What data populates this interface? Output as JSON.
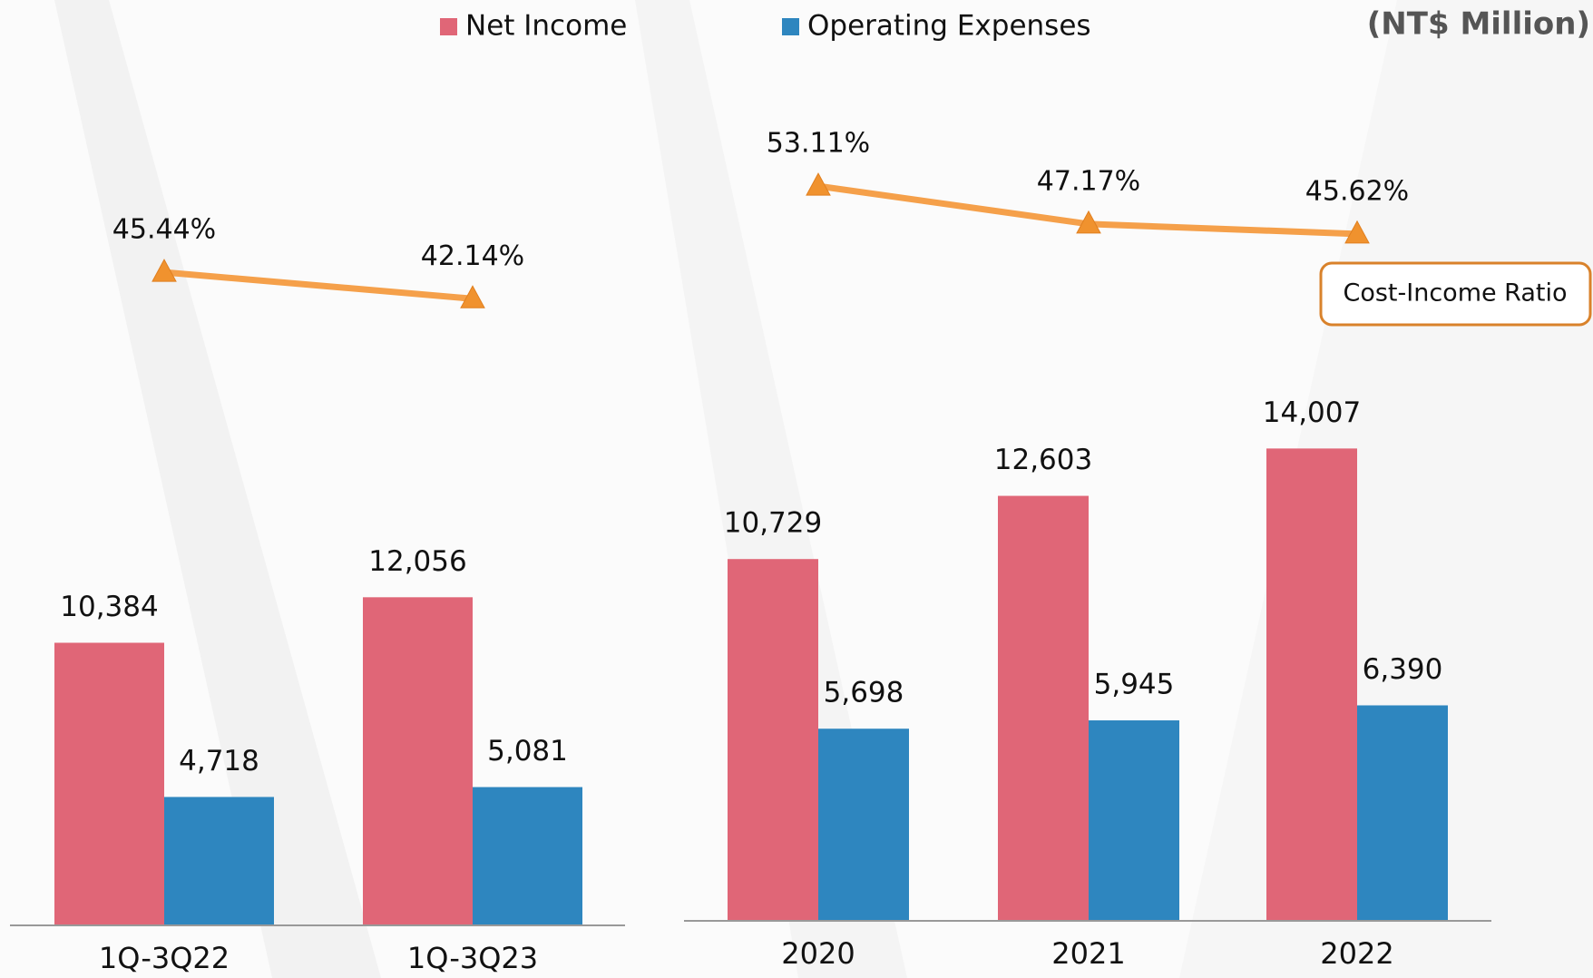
{
  "unit": "(NT$ Million)",
  "chart_data": [
    {
      "type": "bar_line",
      "categories": [
        "1Q-3Q22",
        "1Q-3Q23"
      ],
      "ylim": [
        0,
        33000
      ],
      "y2lim": [
        -36,
        76
      ],
      "series": [
        {
          "name": "Net Income",
          "color": "#e06677",
          "values": [
            10384,
            12056
          ],
          "value_labels": [
            "10,384",
            "12,056"
          ]
        },
        {
          "name": "Operating Expenses",
          "color": "#2e86bf",
          "values": [
            4718,
            5081
          ],
          "value_labels": [
            "4,718",
            "5,081"
          ]
        },
        {
          "color": "#f5a04a",
          "axis": "y2",
          "values": [
            45.44,
            42.14
          ],
          "value_labels": [
            "45.44%",
            "42.14%"
          ]
        }
      ]
    },
    {
      "type": "bar_line",
      "categories": [
        "2020",
        "2021",
        "2022"
      ],
      "ylim": [
        0,
        26500
      ],
      "y2lim": [
        -62,
        78
      ],
      "series": [
        {
          "color": "#e06677",
          "values": [
            10729,
            12603,
            14007
          ],
          "value_labels": [
            "10,729",
            "12,603",
            "14,007"
          ]
        },
        {
          "color": "#2e86bf",
          "values": [
            5698,
            5945,
            6390
          ],
          "value_labels": [
            "5,698",
            "5,945",
            "6,390"
          ]
        },
        {
          "name": "Cost-Income Ratio",
          "color": "#f5a04a",
          "axis": "y2",
          "values": [
            53.11,
            47.17,
            45.62
          ],
          "value_labels": [
            "53.11%",
            "47.17%",
            "45.62%"
          ]
        }
      ]
    }
  ]
}
